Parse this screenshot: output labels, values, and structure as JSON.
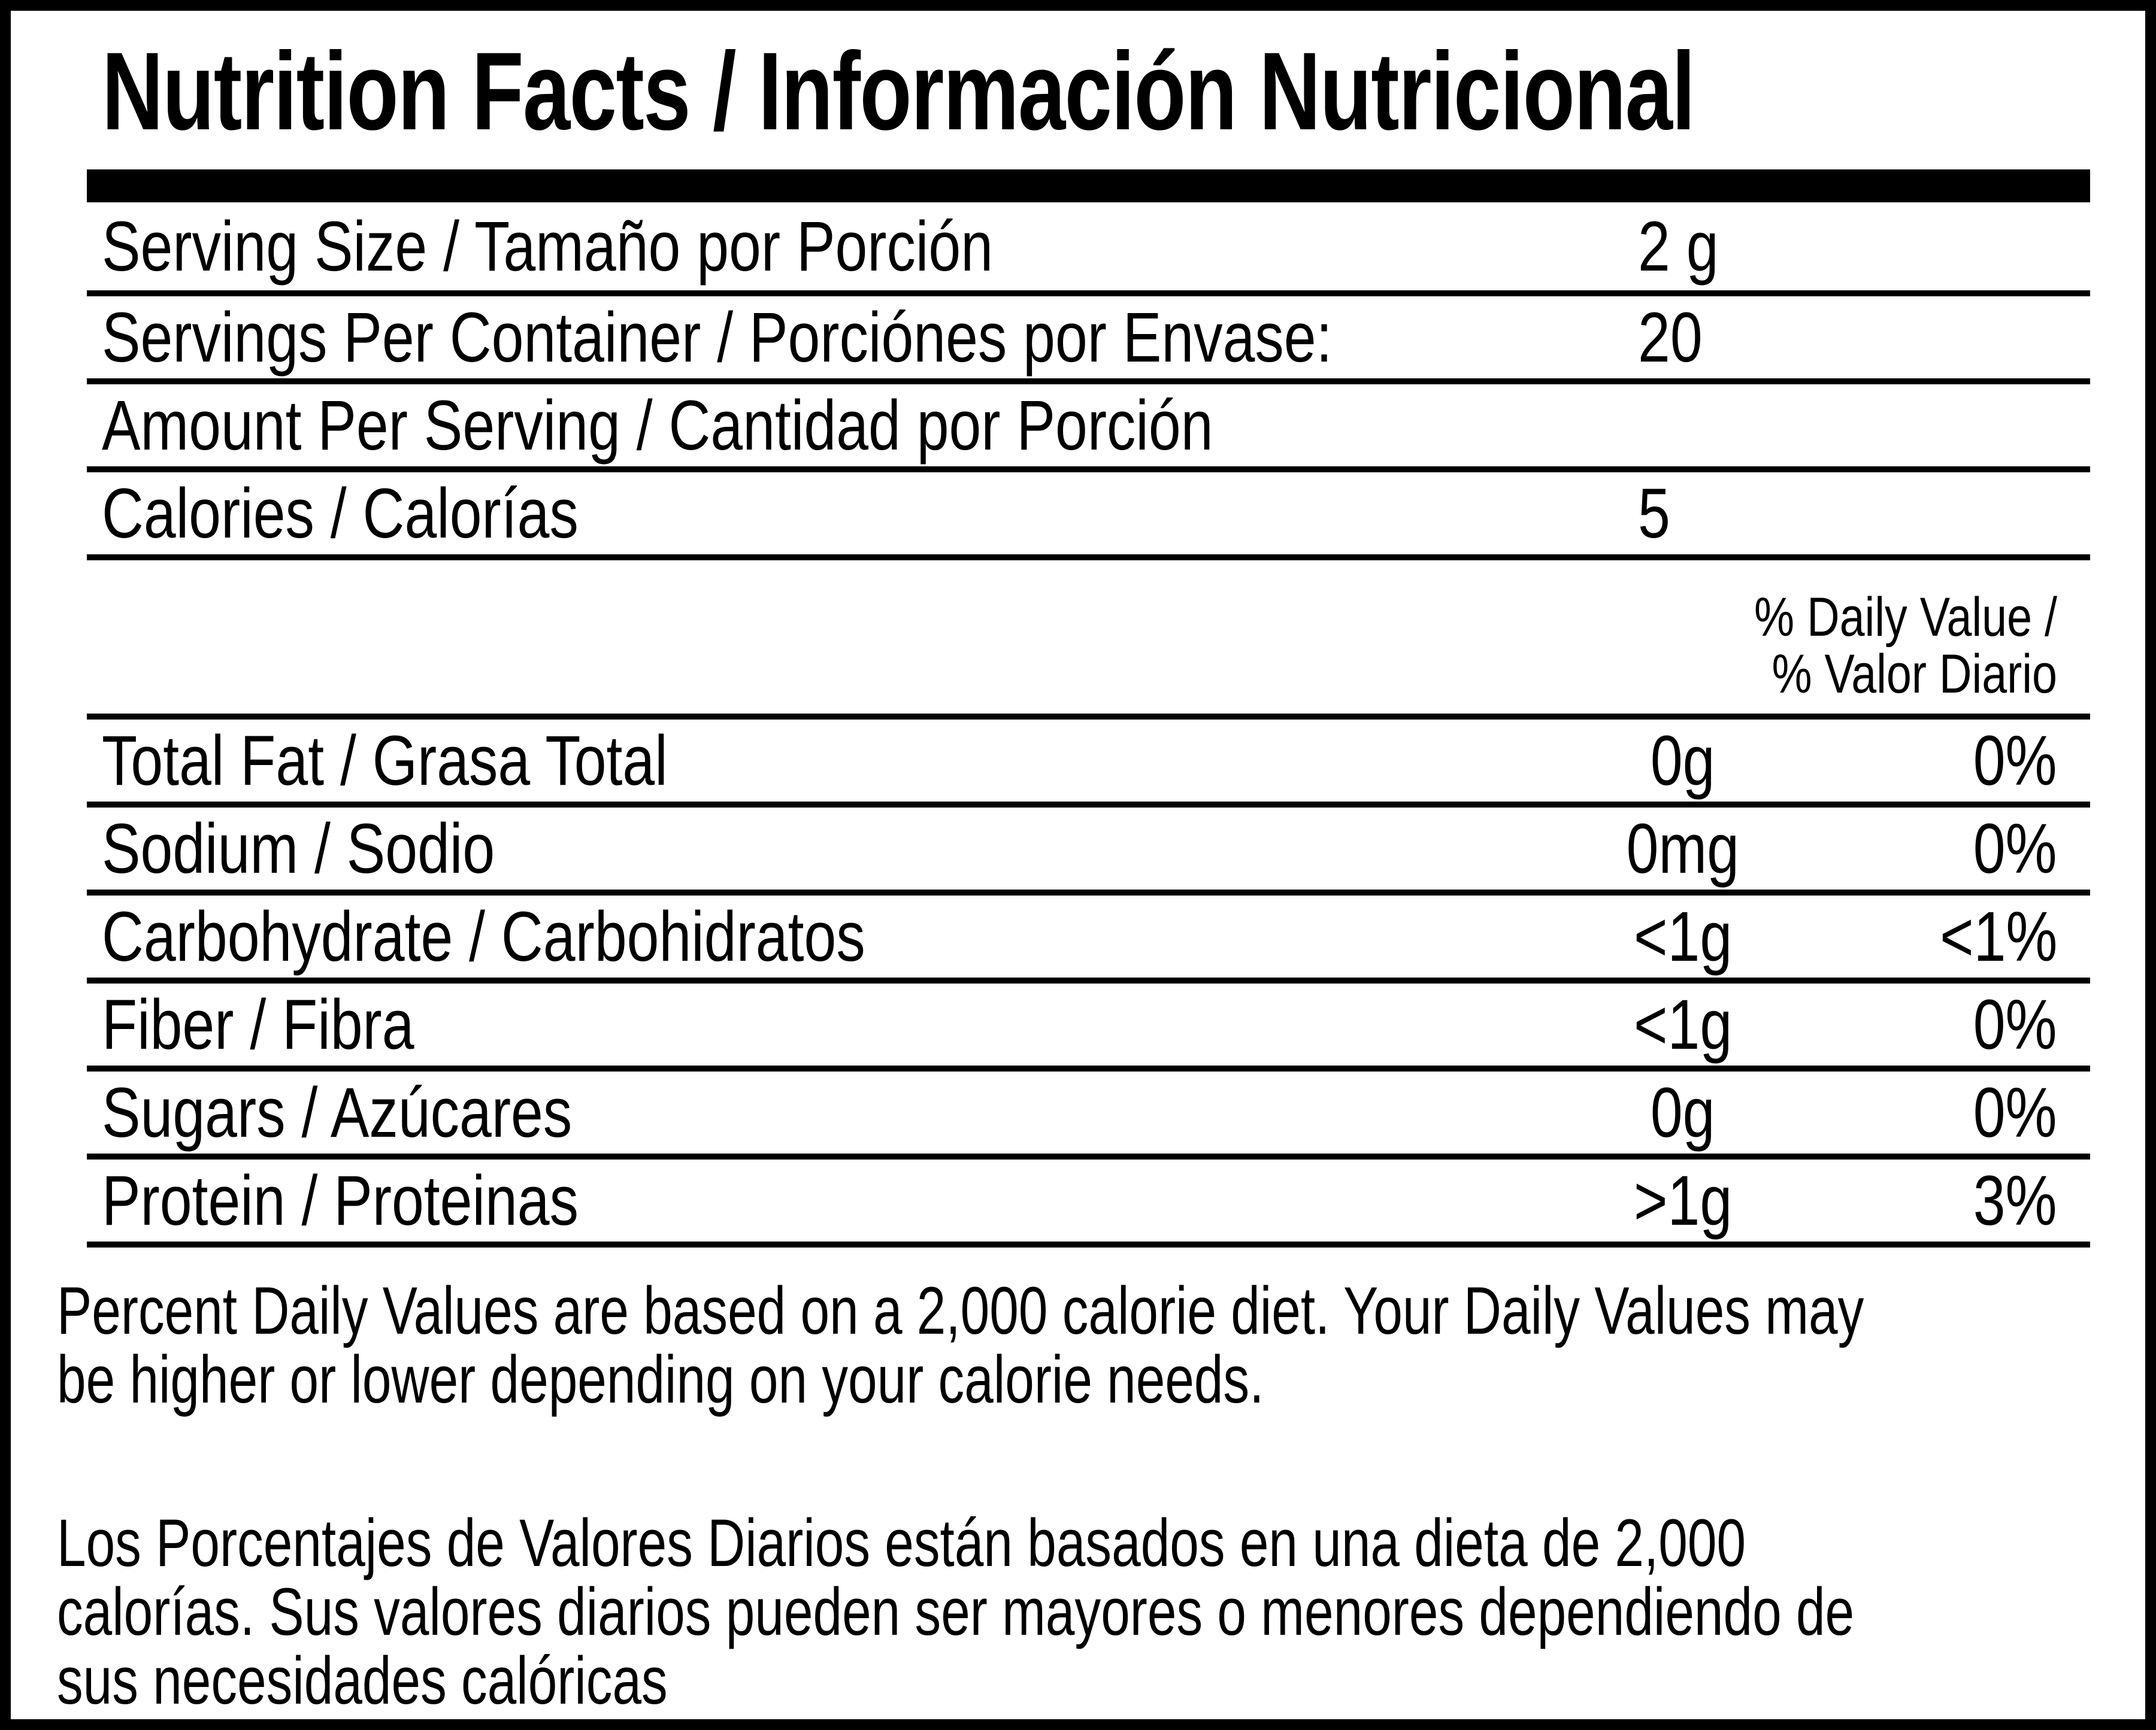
{
  "label": {
    "title": "Nutrition Facts / Información Nutricional",
    "serving_rows": [
      {
        "label": "Serving Size / Tamaño por Porción",
        "value": "2 g"
      },
      {
        "label": "Servings Per Container / Porciónes por Envase:",
        "value": "20"
      },
      {
        "label": "Amount Per Serving / Cantidad por Porción",
        "value": ""
      },
      {
        "label": "Calories / Calorías",
        "value": "5"
      }
    ],
    "daily_value_header": [
      "% Daily Value /",
      "% Valor Diario"
    ],
    "nutrient_rows": [
      {
        "label": "Total Fat / Grasa Total",
        "amount": "0g",
        "daily_value": "0%"
      },
      {
        "label": "Sodium / Sodio",
        "amount": "0mg",
        "daily_value": "0%"
      },
      {
        "label": "Carbohydrate / Carbohidratos",
        "amount": "<1g",
        "daily_value": "<1%"
      },
      {
        "label": "Fiber / Fibra",
        "amount": "<1g",
        "daily_value": "0%"
      },
      {
        "label": "Sugars / Azúcares",
        "amount": "0g",
        "daily_value": "0%"
      },
      {
        "label": "Protein / Proteinas",
        "amount": ">1g",
        "daily_value": "3%"
      }
    ],
    "footnote_en": [
      "Percent Daily Values are based on a 2,000 calorie diet. Your Daily Values may",
      "be higher or lower depending on your calorie needs."
    ],
    "footnote_es": [
      "Los Porcentajes de Valores Diarios están basados en una dieta de 2,000",
      "calorías. Sus valores diarios pueden ser mayores o menores dependiendo de",
      "sus necesidades calóricas"
    ],
    "colors": {
      "ink": "#000000",
      "paper": "#ffffff"
    }
  }
}
